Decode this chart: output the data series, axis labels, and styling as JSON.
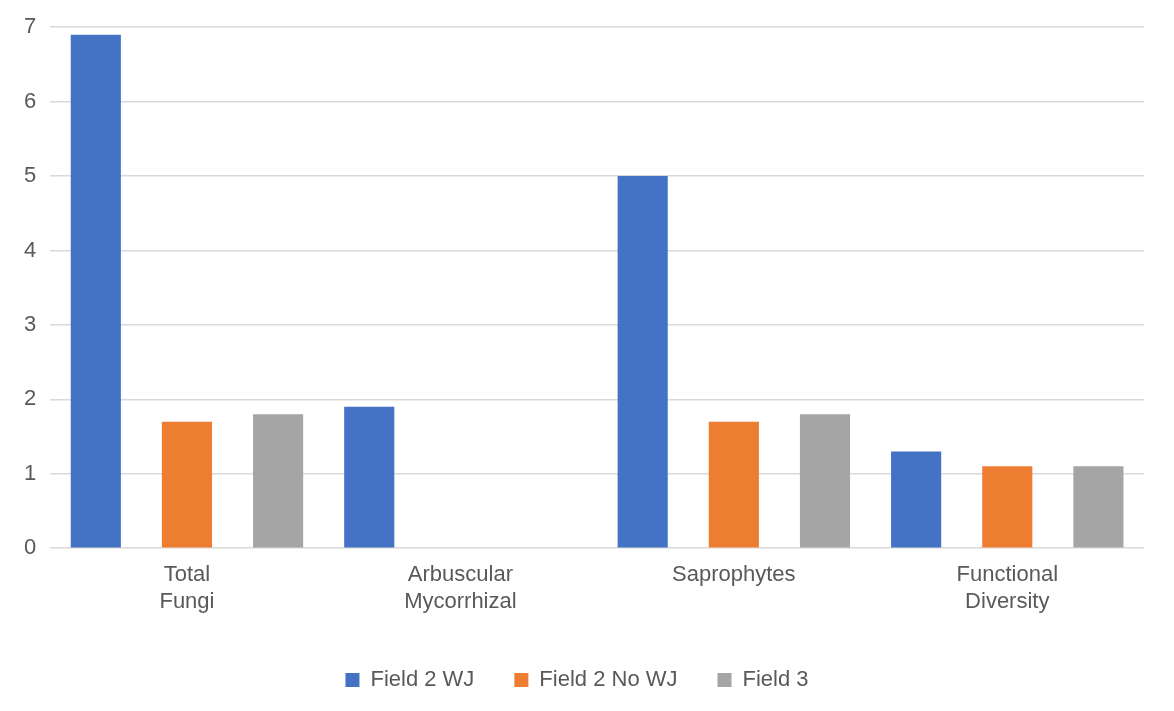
{
  "chart_data": {
    "type": "bar",
    "categories": [
      "Total Fungi",
      "Arbuscular Mycorrhizal",
      "Saprophytes",
      "Functional Diversity"
    ],
    "series": [
      {
        "name": "Field 2 WJ",
        "color": "#4472c4",
        "values": [
          6.9,
          1.9,
          5.0,
          1.3
        ]
      },
      {
        "name": "Field 2 No WJ",
        "color": "#ed7d31",
        "values": [
          1.7,
          0,
          1.7,
          1.1
        ]
      },
      {
        "name": "Field 3",
        "color": "#a5a5a5",
        "values": [
          1.8,
          0,
          1.8,
          1.1
        ]
      }
    ],
    "ylim": [
      0,
      7
    ],
    "yticks": [
      0,
      1,
      2,
      3,
      4,
      5,
      6,
      7
    ],
    "grid": "y",
    "legend": "bottom"
  }
}
